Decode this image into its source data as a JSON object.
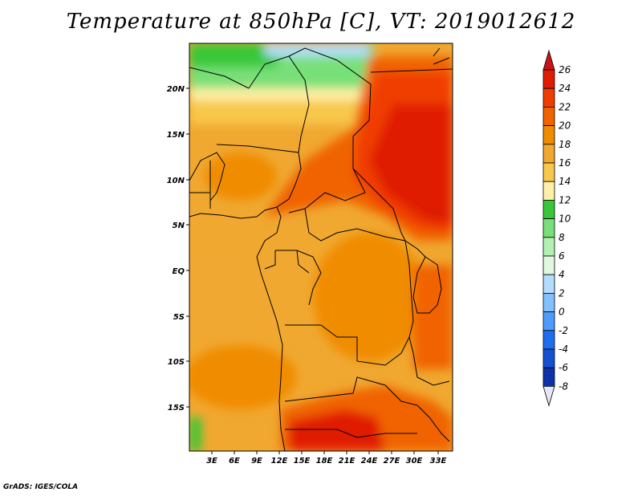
{
  "title": "Temperature at 850hPa [C], VT: 2019012612",
  "credit": "GrADS: IGES/COLA",
  "map": {
    "lat_labels": [
      "20N",
      "15N",
      "10N",
      "5N",
      "EQ",
      "5S",
      "10S",
      "15S"
    ],
    "lon_labels": [
      "3E",
      "6E",
      "9E",
      "12E",
      "15E",
      "18E",
      "21E",
      "24E",
      "27E",
      "30E",
      "33E"
    ]
  },
  "colorbar": {
    "labels": [
      "26",
      "24",
      "22",
      "20",
      "18",
      "16",
      "14",
      "12",
      "10",
      "8",
      "6",
      "4",
      "2",
      "0",
      "-2",
      "-4",
      "-6",
      "-8"
    ],
    "colors": [
      "#e01c00",
      "#f03c00",
      "#f06400",
      "#f08c00",
      "#f0a830",
      "#f8c84c",
      "#fff0a8",
      "#39c739",
      "#78e078",
      "#b4f0b4",
      "#e0f8e0",
      "#b4dcff",
      "#82c0ff",
      "#4c9cff",
      "#1e6ef0",
      "#1450d2",
      "#0c32aa",
      "#000078"
    ],
    "over_color": "#c81414",
    "under_color": "#e6e6f8"
  }
}
